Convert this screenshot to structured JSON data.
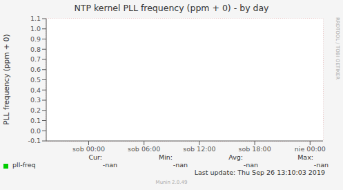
{
  "chart_data": {
    "type": "line",
    "title": "NTP kernel PLL frequency (ppm + 0) - by day",
    "y_label": "PLL frequency (ppm + 0)",
    "x": [
      0,
      6,
      12,
      18,
      24
    ],
    "series": [
      {
        "name": "pll-freq",
        "color": "#00cc00",
        "values": [
          null,
          null,
          null,
          null,
          null
        ]
      }
    ],
    "xlim": [
      -4.6,
      25.4
    ],
    "xticks": [
      {
        "value": 0,
        "label": "sob 00:00"
      },
      {
        "value": 6,
        "label": "sob 06:00"
      },
      {
        "value": 12,
        "label": "sob 12:00"
      },
      {
        "value": 18,
        "label": "sob 18:00"
      },
      {
        "value": 24,
        "label": "nie 00:00"
      }
    ],
    "ylim": [
      -0.1,
      1.1
    ],
    "yticks": [
      -0.1,
      {
        "value": 0,
        "label": "0.0"
      },
      0.1,
      0.2,
      0.3,
      0.4,
      0.5,
      0.6,
      0.7,
      0.8,
      0.9,
      {
        "value": 1,
        "label": "1.0"
      },
      1.1
    ],
    "grid": true,
    "stats_headers": [
      "Cur:",
      "Min:",
      "Avg:",
      "Max:"
    ],
    "stats_values": [
      "-nan",
      "-nan",
      "-nan",
      "-nan"
    ],
    "last_update": "Last update: Thu Sep 26 13:10:03 2019",
    "footer": "Munin 2.0.49",
    "watermark": "RRDTOOL / TOBI OETIKER"
  }
}
